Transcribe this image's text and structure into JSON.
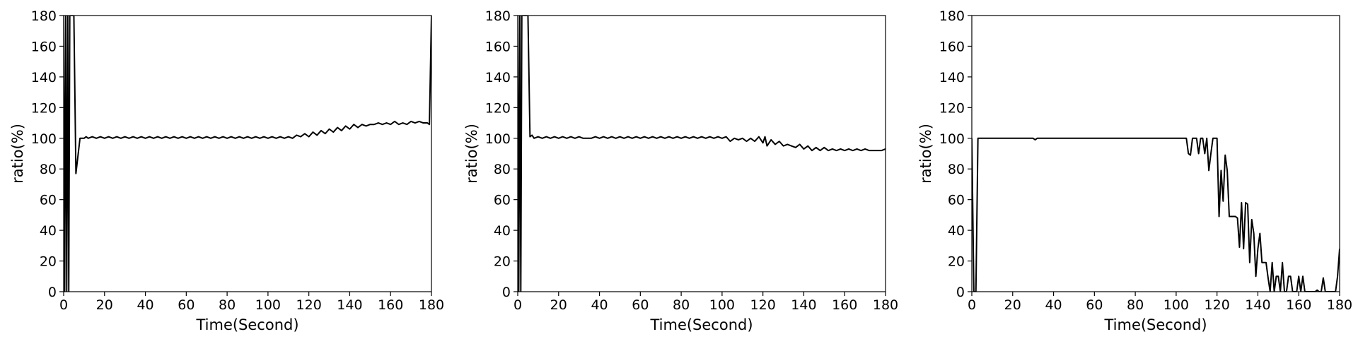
{
  "chart_data": [
    {
      "type": "line",
      "xlabel": "Time(Second)",
      "ylabel": "ratio(%)",
      "xlim": [
        0,
        180
      ],
      "ylim": [
        0,
        180
      ],
      "xticks": [
        0,
        20,
        40,
        60,
        80,
        100,
        120,
        140,
        160,
        180
      ],
      "yticks": [
        0,
        20,
        40,
        60,
        80,
        100,
        120,
        140,
        160,
        180
      ],
      "grid": false,
      "series": [
        {
          "color": "#000000",
          "x": [
            0,
            0.5,
            1,
            1.5,
            2,
            2.5,
            3,
            4,
            5,
            6,
            8,
            10,
            11,
            12,
            14,
            16,
            18,
            20,
            22,
            24,
            26,
            28,
            30,
            32,
            34,
            36,
            38,
            40,
            42,
            44,
            46,
            48,
            50,
            52,
            54,
            56,
            58,
            60,
            62,
            64,
            66,
            68,
            70,
            72,
            74,
            76,
            78,
            80,
            82,
            84,
            86,
            88,
            90,
            92,
            94,
            96,
            98,
            100,
            102,
            104,
            106,
            108,
            110,
            112,
            114,
            116,
            118,
            120,
            122,
            124,
            126,
            128,
            130,
            132,
            134,
            136,
            138,
            140,
            142,
            144,
            146,
            148,
            150,
            152,
            154,
            156,
            158,
            160,
            162,
            164,
            166,
            168,
            170,
            172,
            174,
            176,
            178,
            179,
            180
          ],
          "y": [
            180,
            0,
            180,
            0,
            180,
            0,
            180,
            180,
            180,
            77,
            100,
            100,
            101,
            100,
            101,
            100,
            101,
            100,
            101,
            100,
            101,
            100,
            101,
            100,
            101,
            100,
            101,
            100,
            101,
            100,
            101,
            100,
            101,
            100,
            101,
            100,
            101,
            100,
            101,
            100,
            101,
            100,
            101,
            100,
            101,
            100,
            101,
            100,
            101,
            100,
            101,
            100,
            101,
            100,
            101,
            100,
            101,
            100,
            101,
            100,
            101,
            100,
            101,
            100,
            102,
            101,
            103,
            101,
            104,
            102,
            105,
            103,
            106,
            104,
            107,
            105,
            108,
            106,
            109,
            107,
            109,
            108,
            109,
            109,
            110,
            109,
            110,
            109,
            111,
            109,
            110,
            109,
            111,
            110,
            111,
            110,
            110,
            109,
            180
          ]
        }
      ]
    },
    {
      "type": "line",
      "xlabel": "Time(Second)",
      "ylabel": "ratio(%)",
      "xlim": [
        0,
        180
      ],
      "ylim": [
        0,
        180
      ],
      "xticks": [
        0,
        20,
        40,
        60,
        80,
        100,
        120,
        140,
        160,
        180
      ],
      "yticks": [
        0,
        20,
        40,
        60,
        80,
        100,
        120,
        140,
        160,
        180
      ],
      "grid": false,
      "series": [
        {
          "color": "#000000",
          "x": [
            0,
            0.5,
            1,
            1.5,
            2,
            3,
            4,
            5,
            6,
            7,
            8,
            10,
            12,
            14,
            16,
            18,
            20,
            22,
            24,
            26,
            28,
            30,
            32,
            34,
            36,
            38,
            40,
            42,
            44,
            46,
            48,
            50,
            52,
            54,
            56,
            58,
            60,
            62,
            64,
            66,
            68,
            70,
            72,
            74,
            76,
            78,
            80,
            82,
            84,
            86,
            88,
            90,
            92,
            94,
            96,
            98,
            100,
            102,
            104,
            106,
            108,
            110,
            112,
            114,
            116,
            118,
            120,
            121,
            122,
            124,
            126,
            128,
            130,
            132,
            134,
            136,
            138,
            140,
            142,
            144,
            146,
            148,
            150,
            152,
            154,
            156,
            158,
            160,
            162,
            164,
            166,
            168,
            170,
            172,
            174,
            176,
            178,
            180
          ],
          "y": [
            180,
            0,
            180,
            0,
            180,
            180,
            180,
            180,
            101,
            102,
            100,
            101,
            100,
            101,
            100,
            101,
            100,
            101,
            100,
            101,
            100,
            101,
            100,
            100,
            100,
            101,
            100,
            101,
            100,
            101,
            100,
            101,
            100,
            101,
            100,
            101,
            100,
            101,
            100,
            101,
            100,
            101,
            100,
            101,
            100,
            101,
            100,
            101,
            100,
            101,
            100,
            101,
            100,
            101,
            100,
            101,
            100,
            101,
            98,
            100,
            99,
            100,
            98,
            100,
            98,
            101,
            97,
            101,
            95,
            99,
            96,
            98,
            95,
            96,
            95,
            94,
            96,
            93,
            95,
            92,
            94,
            92,
            94,
            92,
            93,
            92,
            93,
            92,
            93,
            92,
            93,
            92,
            93,
            92,
            92,
            92,
            92,
            93
          ]
        }
      ]
    },
    {
      "type": "line",
      "xlabel": "Time(Second)",
      "ylabel": "ratio(%)",
      "xlim": [
        0,
        180
      ],
      "ylim": [
        0,
        180
      ],
      "xticks": [
        0,
        20,
        40,
        60,
        80,
        100,
        120,
        140,
        160,
        180
      ],
      "yticks": [
        0,
        20,
        40,
        60,
        80,
        100,
        120,
        140,
        160,
        180
      ],
      "grid": false,
      "series": [
        {
          "color": "#000000",
          "x": [
            0,
            1,
            2,
            3,
            10,
            20,
            30,
            31,
            32,
            40,
            50,
            60,
            70,
            80,
            90,
            100,
            104,
            105,
            106,
            107,
            108,
            110,
            111,
            112,
            113,
            114,
            115,
            116,
            117,
            118,
            120,
            121,
            122,
            123,
            124,
            125,
            126,
            127,
            128,
            129,
            130,
            131,
            132,
            133,
            134,
            135,
            136,
            137,
            138,
            139,
            140,
            141,
            142,
            143,
            144,
            145,
            146,
            147,
            148,
            149,
            150,
            151,
            152,
            153,
            154,
            155,
            156,
            157,
            158,
            159,
            160,
            161,
            162,
            163,
            164,
            165,
            166,
            167,
            168,
            169,
            170,
            171,
            172,
            173,
            174,
            175,
            176,
            177,
            178,
            179,
            180
          ],
          "y": [
            100,
            0,
            0,
            100,
            100,
            100,
            100,
            99,
            100,
            100,
            100,
            100,
            100,
            100,
            100,
            100,
            100,
            100,
            90,
            89,
            100,
            100,
            90,
            100,
            100,
            90,
            100,
            79,
            90,
            100,
            100,
            49,
            79,
            59,
            89,
            79,
            49,
            49,
            49,
            49,
            48,
            29,
            58,
            28,
            58,
            57,
            19,
            47,
            38,
            10,
            28,
            38,
            19,
            19,
            19,
            9,
            0,
            19,
            0,
            10,
            10,
            0,
            19,
            0,
            0,
            10,
            10,
            0,
            0,
            0,
            10,
            0,
            10,
            0,
            0,
            0,
            0,
            0,
            0,
            1,
            0,
            0,
            9,
            0,
            0,
            0,
            0,
            0,
            0,
            10,
            28
          ]
        }
      ]
    }
  ]
}
